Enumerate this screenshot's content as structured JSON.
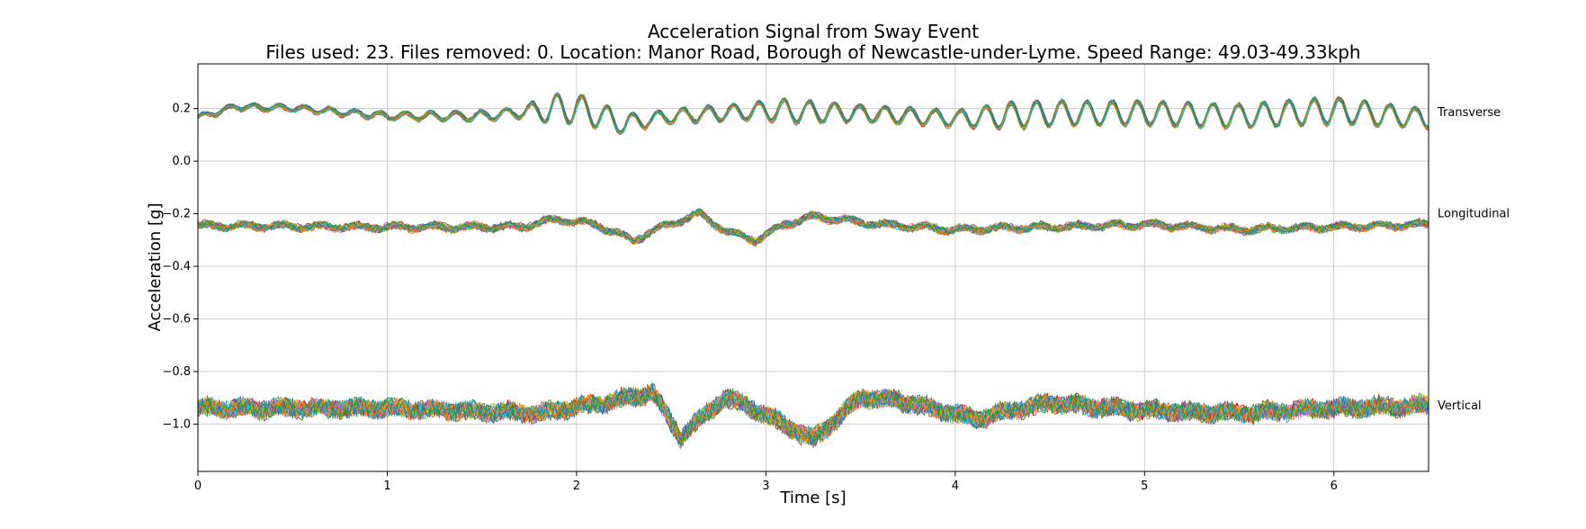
{
  "chart_data": {
    "type": "line",
    "title": "Acceleration Signal from Sway Event",
    "subtitle": "Files used: 23. Files removed: 0. Location: Manor Road, Borough of Newcastle-under-Lyme. Speed Range: 49.03-49.33kph",
    "xlabel": "Time [s]",
    "ylabel": "Acceleration [g]",
    "xlim": [
      0,
      6.5
    ],
    "ylim": [
      -1.18,
      0.37
    ],
    "xticks": [
      "0",
      "1",
      "2",
      "3",
      "4",
      "5",
      "6"
    ],
    "yticks": [
      "0.2",
      "0.0",
      "−0.2",
      "−0.4",
      "−0.6",
      "−0.8",
      "−1.0"
    ],
    "ytick_values": [
      0.2,
      0.0,
      -0.2,
      -0.4,
      -0.6,
      -0.8,
      -1.0
    ],
    "xtick_values": [
      0,
      1,
      2,
      3,
      4,
      5,
      6
    ],
    "grid": true,
    "legend": "none",
    "file_count": 23,
    "colors": [
      "#1f77b4",
      "#ff7f0e",
      "#2ca02c",
      "#d62728",
      "#9467bd",
      "#8c564b",
      "#e377c2",
      "#7f7f7f",
      "#bcbd22",
      "#17becf"
    ],
    "series": [
      {
        "label": "Transverse",
        "label_value": 0.185,
        "mean_profile": [
          [
            0,
            0.165
          ],
          [
            0.2,
            0.205
          ],
          [
            0.5,
            0.2
          ],
          [
            1.0,
            0.17
          ],
          [
            1.5,
            0.17
          ],
          [
            1.8,
            0.19
          ],
          [
            2.0,
            0.2
          ],
          [
            2.25,
            0.14
          ],
          [
            2.5,
            0.17
          ],
          [
            3.0,
            0.19
          ],
          [
            3.5,
            0.18
          ],
          [
            4.0,
            0.16
          ],
          [
            4.5,
            0.18
          ],
          [
            5.0,
            0.18
          ],
          [
            5.5,
            0.17
          ],
          [
            6.0,
            0.19
          ],
          [
            6.5,
            0.16
          ]
        ],
        "oscillation_amplitude": [
          [
            0,
            0.01
          ],
          [
            1.0,
            0.012
          ],
          [
            1.7,
            0.02
          ],
          [
            1.9,
            0.06
          ],
          [
            2.1,
            0.05
          ],
          [
            2.4,
            0.025
          ],
          [
            2.9,
            0.03
          ],
          [
            3.1,
            0.045
          ],
          [
            3.5,
            0.03
          ],
          [
            4.0,
            0.03
          ],
          [
            4.3,
            0.05
          ],
          [
            4.8,
            0.045
          ],
          [
            5.5,
            0.045
          ],
          [
            6.0,
            0.05
          ],
          [
            6.5,
            0.035
          ]
        ]
      },
      {
        "label": "Longitudinal",
        "label_value": -0.2,
        "mean_profile": [
          [
            0,
            -0.245
          ],
          [
            1.0,
            -0.25
          ],
          [
            1.7,
            -0.25
          ],
          [
            1.9,
            -0.22
          ],
          [
            2.1,
            -0.24
          ],
          [
            2.3,
            -0.3
          ],
          [
            2.45,
            -0.25
          ],
          [
            2.65,
            -0.2
          ],
          [
            2.8,
            -0.27
          ],
          [
            2.95,
            -0.3
          ],
          [
            3.1,
            -0.24
          ],
          [
            3.25,
            -0.21
          ],
          [
            3.6,
            -0.24
          ],
          [
            4.0,
            -0.26
          ],
          [
            5.0,
            -0.24
          ],
          [
            5.5,
            -0.26
          ],
          [
            6.5,
            -0.24
          ]
        ],
        "oscillation_amplitude": [
          [
            0,
            0.012
          ],
          [
            6.5,
            0.012
          ]
        ]
      },
      {
        "label": "Vertical",
        "label_value": -0.93,
        "mean_profile": [
          [
            0,
            -0.94
          ],
          [
            1.0,
            -0.94
          ],
          [
            1.8,
            -0.96
          ],
          [
            2.15,
            -0.92
          ],
          [
            2.4,
            -0.88
          ],
          [
            2.55,
            -1.05
          ],
          [
            2.78,
            -0.9
          ],
          [
            2.9,
            -0.93
          ],
          [
            3.25,
            -1.06
          ],
          [
            3.5,
            -0.9
          ],
          [
            3.7,
            -0.91
          ],
          [
            4.1,
            -0.98
          ],
          [
            4.5,
            -0.92
          ],
          [
            5.0,
            -0.95
          ],
          [
            5.5,
            -0.96
          ],
          [
            6.0,
            -0.94
          ],
          [
            6.5,
            -0.93
          ]
        ],
        "oscillation_amplitude": [
          [
            0,
            0.035
          ],
          [
            6.5,
            0.035
          ]
        ]
      }
    ]
  }
}
